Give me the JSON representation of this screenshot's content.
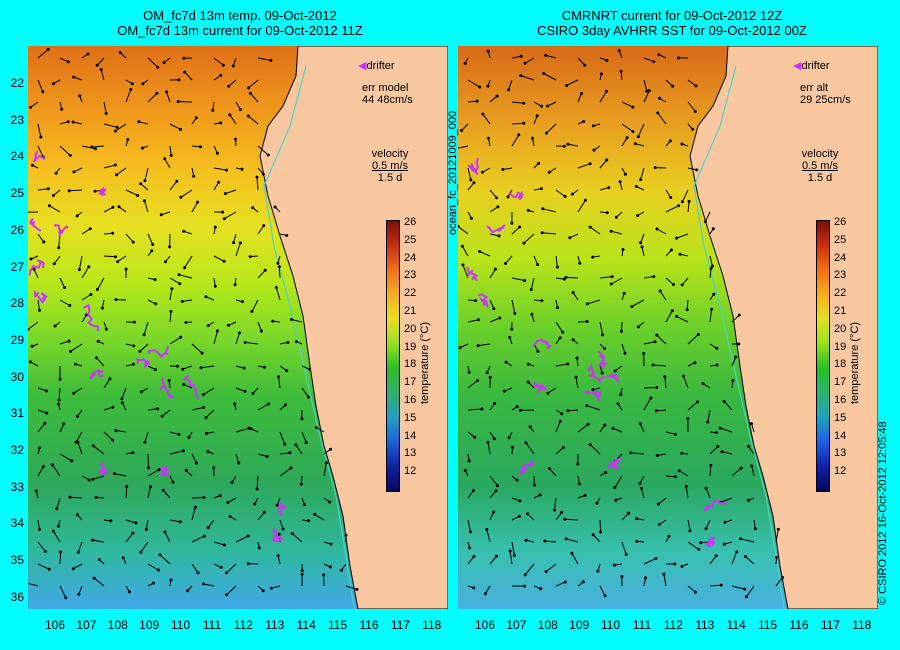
{
  "left_panel": {
    "title_line1": "OM_fc7d 13m temp. 09-Oct-2012",
    "title_line2": "OM_fc7d 13m current for 09-Oct-2012 11Z",
    "drifter_label": "drifter",
    "err_label": "err model",
    "err_value": "44 48cm/s",
    "velocity_label": "velocity",
    "velocity_scale": "0.5 m/s",
    "velocity_time": "1.5 d"
  },
  "right_panel": {
    "title_line1": "CMRNRT current for 09-Oct-2012 12Z",
    "title_line2": "CSIRO 3day AVHRR SST for 09-Oct-2012 00Z",
    "drifter_label": "drifter",
    "err_label": "err alt",
    "err_value": "29 25cm/s",
    "velocity_label": "velocity",
    "velocity_scale": "0.5 m/s",
    "velocity_time": "1.5 d"
  },
  "axes": {
    "lat_labels": [
      "22",
      "23",
      "24",
      "25",
      "26",
      "27",
      "28",
      "29",
      "30",
      "31",
      "32",
      "33",
      "34",
      "35",
      "36"
    ],
    "lon_labels": [
      "106",
      "107",
      "108",
      "109",
      "110",
      "111",
      "112",
      "113",
      "114",
      "115",
      "116",
      "117",
      "118"
    ]
  },
  "colorbar": {
    "label": "temperature (°C)",
    "ticks": [
      "26",
      "25",
      "24",
      "23",
      "22",
      "21",
      "20",
      "19",
      "18",
      "17",
      "16",
      "15",
      "14",
      "13",
      "12"
    ]
  },
  "side_text": {
    "center": "ocean_fc_20121009_000",
    "right": "© CSIRO 2012  16-Oct-2012 12:05:48"
  },
  "colors": {
    "background": "#00ffff",
    "land": "#f9c8a0",
    "drifter": "#cc33ff",
    "coast_line": "#4fd0c8"
  }
}
